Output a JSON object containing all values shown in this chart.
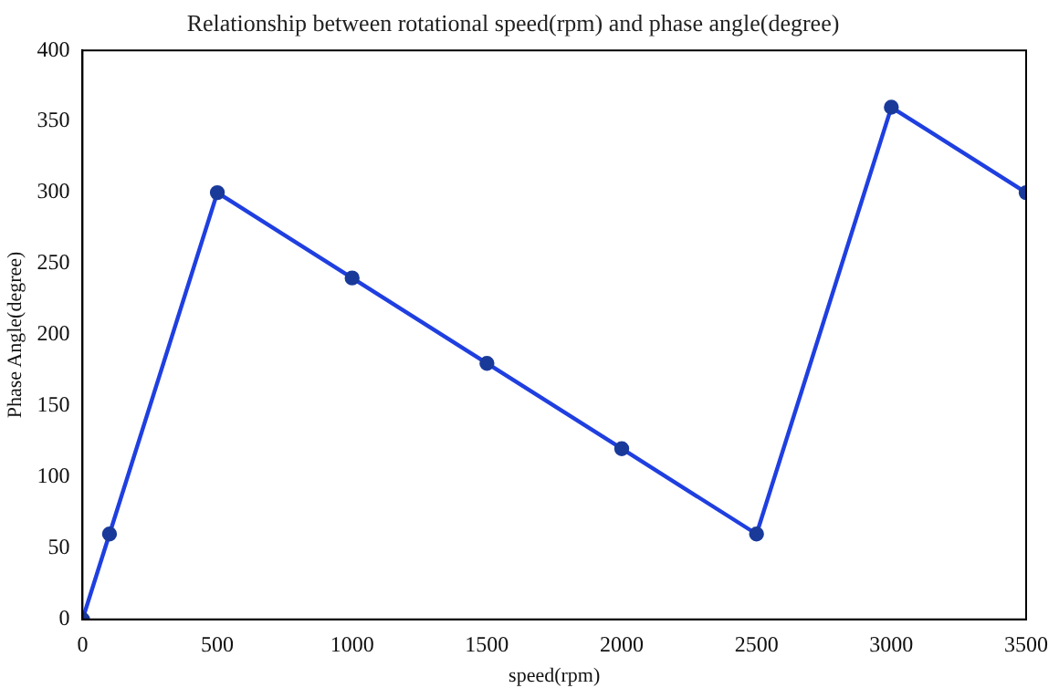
{
  "chart_data": {
    "type": "line",
    "title": "Relationship between rotational speed(rpm) and phase angle(degree)",
    "xlabel": "speed(rpm)",
    "ylabel": "Phase Angle(degree)",
    "x": [
      0,
      100,
      500,
      1000,
      1500,
      2000,
      2500,
      3000,
      3500
    ],
    "series": [
      {
        "color": "#1f3fe0",
        "values": [
          0,
          60,
          300,
          240,
          180,
          120,
          60,
          360,
          300
        ]
      }
    ],
    "xlim": [
      0,
      3500
    ],
    "xticks": [
      0,
      500,
      1000,
      1500,
      2000,
      2500,
      3000,
      3500
    ],
    "ylim": [
      0,
      400
    ],
    "yticks": [
      0,
      50,
      100,
      150,
      200,
      250,
      300,
      350,
      400
    ],
    "grid": false,
    "legend": false,
    "marker": "circle",
    "line_style": "solid"
  }
}
